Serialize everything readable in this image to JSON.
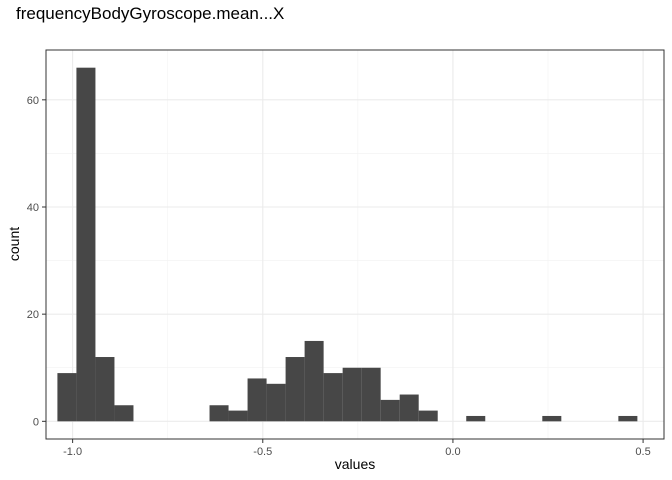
{
  "chart_data": {
    "type": "bar",
    "title": "frequencyBodyGyroscope.mean...X",
    "xlabel": "values",
    "ylabel": "count",
    "xlim": [
      -1.07,
      0.555
    ],
    "ylim": [
      -3.3,
      69.3
    ],
    "xticks": [
      -1.0,
      -0.5,
      0.0,
      0.5
    ],
    "xtick_labels": [
      "-1.0",
      "-0.5",
      "0.0",
      "0.5"
    ],
    "yticks": [
      0,
      20,
      40,
      60
    ],
    "ytick_labels": [
      "0",
      "20",
      "40",
      "60"
    ],
    "grid": true,
    "bin_width": 0.05,
    "bins": [
      {
        "x0": -1.04,
        "x1": -0.99,
        "count": 9
      },
      {
        "x0": -0.99,
        "x1": -0.94,
        "count": 66
      },
      {
        "x0": -0.94,
        "x1": -0.89,
        "count": 12
      },
      {
        "x0": -0.89,
        "x1": -0.84,
        "count": 3
      },
      {
        "x0": -0.64,
        "x1": -0.59,
        "count": 3
      },
      {
        "x0": -0.59,
        "x1": -0.54,
        "count": 2
      },
      {
        "x0": -0.54,
        "x1": -0.49,
        "count": 8
      },
      {
        "x0": -0.49,
        "x1": -0.44,
        "count": 7
      },
      {
        "x0": -0.44,
        "x1": -0.39,
        "count": 12
      },
      {
        "x0": -0.39,
        "x1": -0.34,
        "count": 15
      },
      {
        "x0": -0.34,
        "x1": -0.29,
        "count": 9
      },
      {
        "x0": -0.29,
        "x1": -0.24,
        "count": 10
      },
      {
        "x0": -0.24,
        "x1": -0.19,
        "count": 10
      },
      {
        "x0": -0.19,
        "x1": -0.14,
        "count": 4
      },
      {
        "x0": -0.14,
        "x1": -0.09,
        "count": 5
      },
      {
        "x0": -0.09,
        "x1": -0.04,
        "count": 2
      },
      {
        "x0": 0.035,
        "x1": 0.085,
        "count": 1
      },
      {
        "x0": 0.235,
        "x1": 0.285,
        "count": 1
      },
      {
        "x0": 0.435,
        "x1": 0.485,
        "count": 1
      }
    ],
    "colors": {
      "bar": "#474747",
      "grid_major": "#ebebeb",
      "grid_minor": "#f2f2f2",
      "border": "#333333",
      "tick_text": "#4d4d4d"
    }
  }
}
